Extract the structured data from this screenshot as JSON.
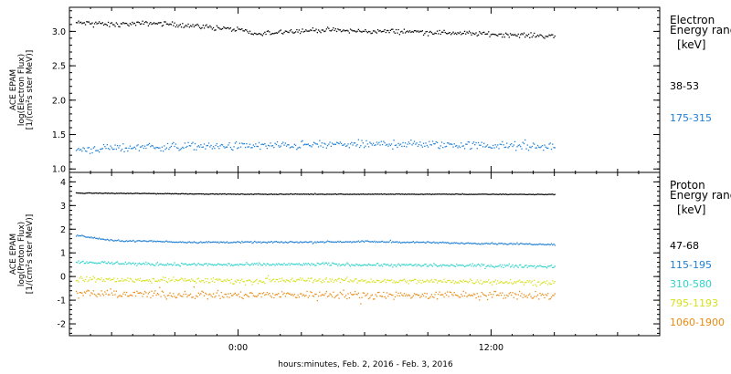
{
  "chart_data": {
    "type": "scatter",
    "xlabel": "hours:minutes, Feb.  2, 2016 - Feb.  3, 2016",
    "x_ticks": [
      "0:00",
      "12:00"
    ],
    "x_range_hours": [
      -8,
      20
    ],
    "data_end_hour": 15,
    "panels": [
      {
        "ylabel_lines": [
          "ACE EPAM",
          "log(Electron Flux)",
          "[1/(cm²s ster MeV)]"
        ],
        "ylim": [
          0.95,
          3.35
        ],
        "yticks": [
          "1.0",
          "1.5",
          "2.0",
          "2.5",
          "3.0"
        ],
        "ytick_values": [
          1.0,
          1.5,
          2.0,
          2.5,
          3.0
        ],
        "legend_title_lines": [
          "Electron",
          "Energy ranges"
        ],
        "legend_unit": "[keV]",
        "series": [
          {
            "name": "38-53",
            "color": "#000000",
            "x": [
              -8,
              -6,
              -4,
              -2,
              0,
              1,
              2,
              4,
              6,
              8,
              10,
              12,
              15
            ],
            "y": [
              3.13,
              3.1,
              3.12,
              3.08,
              3.02,
              2.95,
              3.0,
              3.02,
              3.0,
              3.0,
              2.98,
              2.96,
              2.93
            ],
            "noise": 0.05
          },
          {
            "name": "175-315",
            "color": "#1e7fd6",
            "x": [
              -8,
              -4,
              0,
              4,
              8,
              12,
              15
            ],
            "y": [
              1.28,
              1.32,
              1.33,
              1.35,
              1.36,
              1.34,
              1.32
            ],
            "noise": 0.09
          }
        ]
      },
      {
        "ylabel_lines": [
          "ACE EPAM",
          "log(Proton Flux)",
          "[1/(cm²s ster MeV)]"
        ],
        "ylim": [
          -2.5,
          4.4
        ],
        "yticks": [
          "-2",
          "-1",
          "0",
          "1",
          "2",
          "3",
          "4"
        ],
        "ytick_values": [
          -2,
          -1,
          0,
          1,
          2,
          3,
          4
        ],
        "legend_title_lines": [
          "Proton",
          "Energy ranges"
        ],
        "legend_unit": "[keV]",
        "series": [
          {
            "name": "47-68",
            "color": "#000000",
            "x": [
              -8,
              0,
              8,
              15
            ],
            "y": [
              3.53,
              3.48,
              3.48,
              3.47
            ],
            "noise": 0.02
          },
          {
            "name": "115-195",
            "color": "#1e7fd6",
            "x": [
              -8,
              -6,
              -2,
              2,
              6,
              10,
              15
            ],
            "y": [
              1.78,
              1.52,
              1.45,
              1.45,
              1.48,
              1.42,
              1.36
            ],
            "noise": 0.05
          },
          {
            "name": "310-580",
            "color": "#2ed3cc",
            "x": [
              -8,
              -4,
              0,
              4,
              8,
              12,
              15
            ],
            "y": [
              0.62,
              0.52,
              0.5,
              0.52,
              0.48,
              0.46,
              0.42
            ],
            "noise": 0.1
          },
          {
            "name": "795-1193",
            "color": "#d6e21a",
            "x": [
              -8,
              -4,
              0,
              4,
              8,
              12,
              15
            ],
            "y": [
              -0.12,
              -0.15,
              -0.18,
              -0.15,
              -0.2,
              -0.2,
              -0.25
            ],
            "noise": 0.16
          },
          {
            "name": "1060-1900",
            "color": "#e98a12",
            "x": [
              -8,
              -4,
              0,
              4,
              8,
              12,
              15
            ],
            "y": [
              -0.72,
              -0.75,
              -0.8,
              -0.75,
              -0.8,
              -0.78,
              -0.82
            ],
            "noise": 0.25
          }
        ]
      }
    ]
  }
}
